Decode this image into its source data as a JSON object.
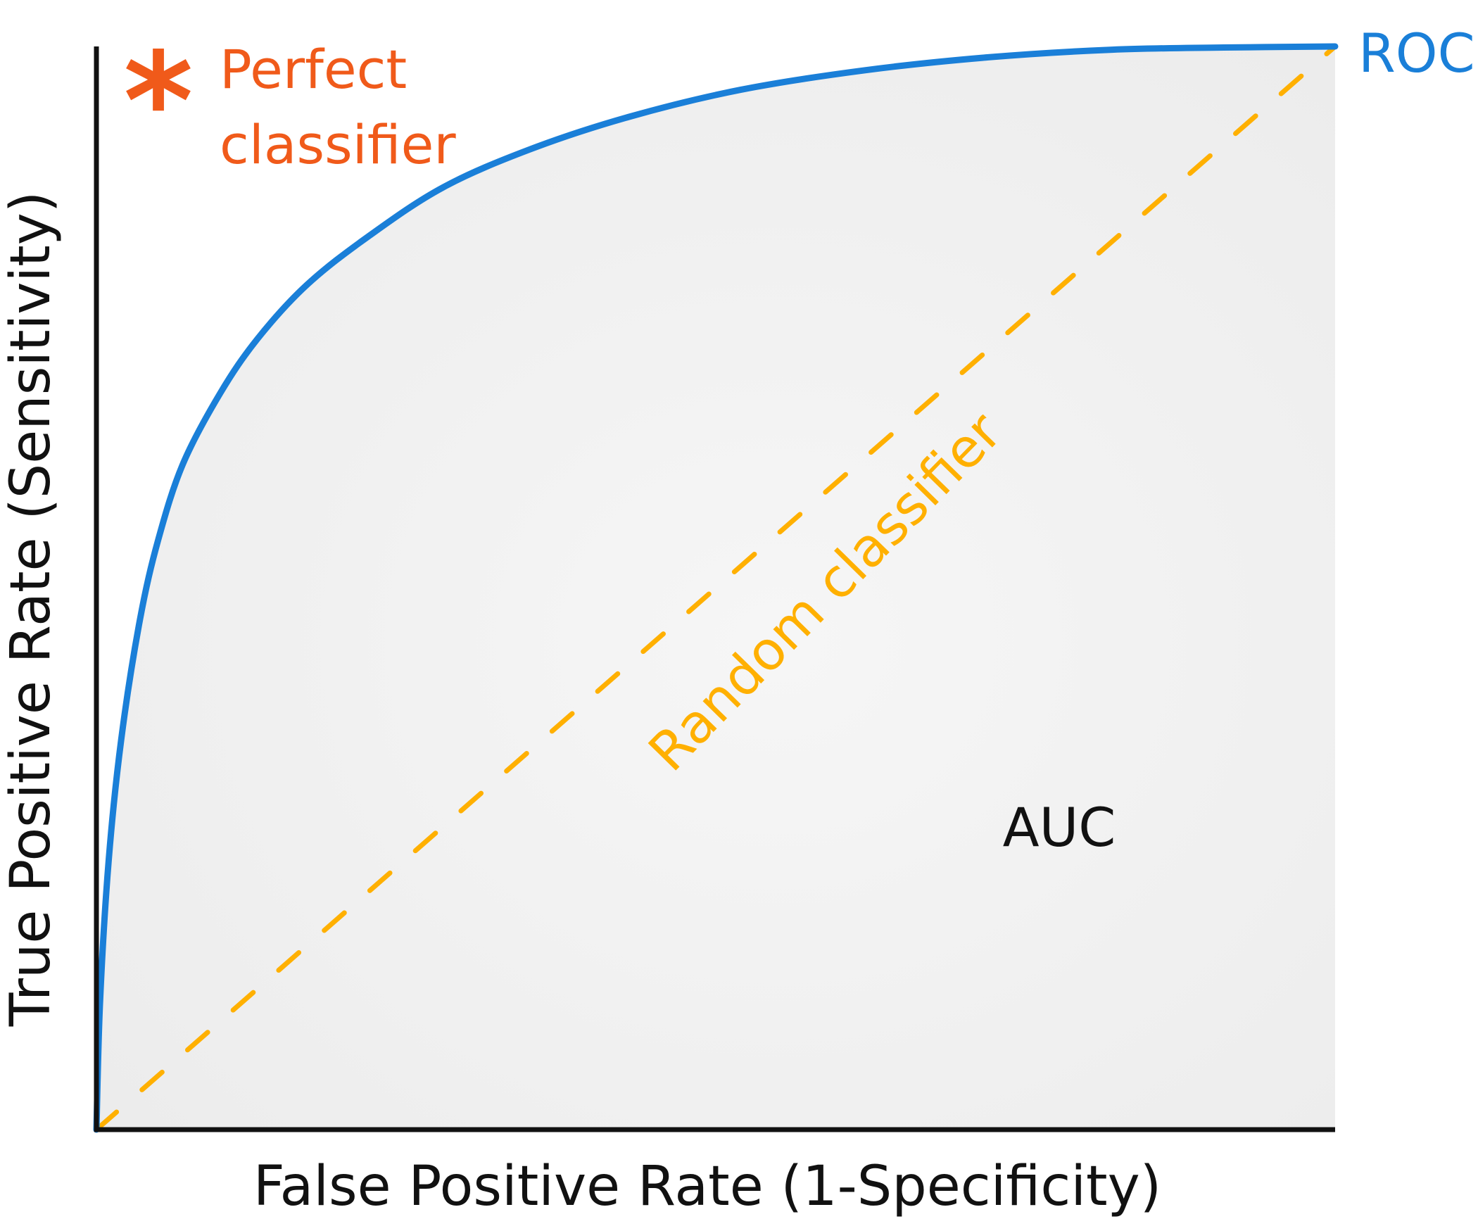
{
  "chart_data": {
    "type": "line",
    "xlabel": "False Positive Rate (1-Specificity)",
    "ylabel": "True Positive Rate (Sensitivity)",
    "xlim": [
      0,
      1
    ],
    "ylim": [
      0,
      1
    ],
    "grid": false,
    "ticks": false,
    "series": [
      {
        "name": "ROC",
        "color": "#1a7fd8",
        "style": "solid",
        "x": [
          0,
          0.003,
          0.01,
          0.02,
          0.035,
          0.05,
          0.07,
          0.1,
          0.13,
          0.17,
          0.22,
          0.28,
          0.35,
          0.43,
          0.52,
          0.62,
          0.72,
          0.82,
          0.91,
          1.0
        ],
        "y": [
          0,
          0.12,
          0.25,
          0.36,
          0.47,
          0.545,
          0.615,
          0.68,
          0.73,
          0.78,
          0.825,
          0.87,
          0.905,
          0.935,
          0.96,
          0.978,
          0.99,
          0.997,
          0.999,
          1.0
        ]
      },
      {
        "name": "Random classifier",
        "color": "#ffb000",
        "style": "dashed",
        "x": [
          0,
          1
        ],
        "y": [
          0,
          1
        ]
      }
    ],
    "annotations": [
      {
        "text": "Perfect",
        "color": "#f05a1a"
      },
      {
        "text": "classifier",
        "color": "#f05a1a"
      },
      {
        "text": "AUC",
        "color": "#111111"
      }
    ],
    "marker_symbol": "*",
    "marker_color": "#f05a1a"
  }
}
